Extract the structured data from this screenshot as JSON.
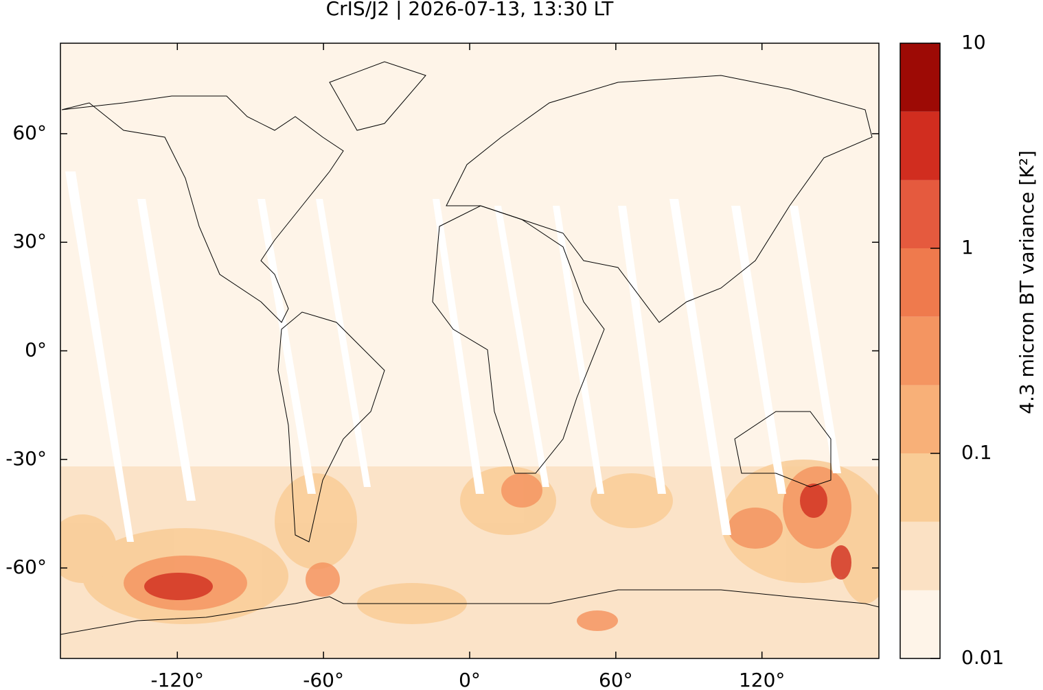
{
  "chart_data": {
    "type": "map",
    "title": "CrIS/J2 | 2026-07-13, 13:30 LT",
    "xlim": [
      -168,
      168
    ],
    "ylim": [
      -85,
      85
    ],
    "xticks": [
      {
        "value": -120,
        "label": "-120°"
      },
      {
        "value": -60,
        "label": "-60°"
      },
      {
        "value": 0,
        "label": "0°"
      },
      {
        "value": 60,
        "label": "60°"
      },
      {
        "value": 120,
        "label": "120°"
      }
    ],
    "yticks": [
      {
        "value": 60,
        "label": "60°"
      },
      {
        "value": 30,
        "label": "30°"
      },
      {
        "value": 0,
        "label": "0°"
      },
      {
        "value": -30,
        "label": "-30°"
      },
      {
        "value": -60,
        "label": "-60°"
      }
    ],
    "colorbar": {
      "label": "4.3 micron BT variance [K²]",
      "log": true,
      "clim": [
        0.01,
        10
      ],
      "ticks": [
        10,
        1,
        0.1,
        0.01
      ],
      "levels": [
        0.01,
        0.0215,
        0.0464,
        0.1,
        0.215,
        0.464,
        1,
        2.15,
        4.64,
        10
      ],
      "colors": [
        "#fef4e8",
        "#fbe1c4",
        "#f9cc96",
        "#f8b078",
        "#f49561",
        "#ef7a4d",
        "#e55a3e",
        "#d12d1f",
        "#9d0a05"
      ]
    }
  }
}
